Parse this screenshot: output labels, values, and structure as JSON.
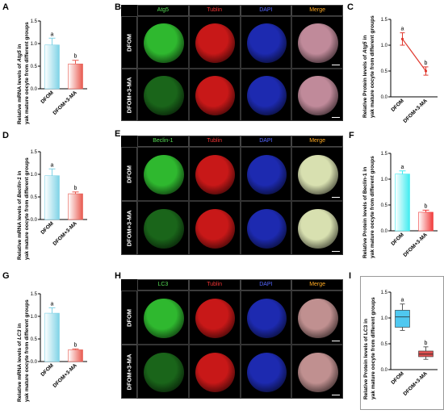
{
  "panels": {
    "A": {
      "letter": "A",
      "ylabel1": "Relative mRNA levels of ",
      "gene": "Atg5",
      "ylabel1b": " in",
      "ylabel2": "yak mature oocyte from different groups",
      "categories": [
        "DFOM",
        "DFOM+3-MA"
      ],
      "ticks": [
        "0.0",
        "0.5",
        "1.0",
        "1.5"
      ],
      "sig": [
        "a",
        "b"
      ]
    },
    "B": {
      "letter": "B",
      "headers": [
        "Atg5",
        "Tublin",
        "DAPI",
        "Merge"
      ],
      "header_colors": [
        "#55dd55",
        "#ee3333",
        "#5566ff",
        "#ffaa22"
      ],
      "rows": [
        "DFOM",
        "DFOM+3-MA"
      ],
      "scale": "20μm",
      "merge_color": "#c08a9a"
    },
    "C": {
      "letter": "C",
      "ylabel1": "Relative Protein levels of ",
      "gene": "Atg5",
      "ylabel1b": " in",
      "ylabel2": "yak mature oocyte from different groups",
      "categories": [
        "DFOM",
        "DFOM+3-MA"
      ],
      "ticks": [
        "0.0",
        "0.5",
        "1.0",
        "1.5"
      ],
      "sig": [
        "a",
        "b"
      ]
    },
    "D": {
      "letter": "D",
      "ylabel1": "Relative mRNA levels of ",
      "gene": "Beclin-1",
      "ylabel1b": " in",
      "ylabel2": "yak mature oocyte from different groups",
      "categories": [
        "DFOM",
        "DFOM+3-MA"
      ],
      "ticks": [
        "0.0",
        "0.5",
        "1.0",
        "1.5"
      ],
      "sig": [
        "a",
        "b"
      ]
    },
    "E": {
      "letter": "E",
      "headers": [
        "Beclin-1",
        "Tublin",
        "DAPI",
        "Merge"
      ],
      "header_colors": [
        "#55dd55",
        "#ee3333",
        "#5566ff",
        "#ffaa22"
      ],
      "rows": [
        "DFOM",
        "DFOM+3-MA"
      ],
      "scale": "20μm",
      "merge_color": "#d8e0b0"
    },
    "F": {
      "letter": "F",
      "ylabel1": "Relative Protein levels of Beclin-1 in",
      "gene": "",
      "ylabel1b": "",
      "ylabel2": "yak mature oocyte from different groups",
      "categories": [
        "DFOM",
        "DFOM+3-MA"
      ],
      "ticks": [
        "0.0",
        "0.5",
        "1.0",
        "1.5"
      ],
      "sig": [
        "a",
        "b"
      ]
    },
    "G": {
      "letter": "G",
      "ylabel1": "Relative mRNA levels of ",
      "gene": "LC3",
      "ylabel1b": " in",
      "ylabel2": "yak mature oocyte from different groups",
      "categories": [
        "DFOM",
        "DFOM+3-MA"
      ],
      "ticks": [
        "0.0",
        "0.5",
        "1.0",
        "1.5"
      ],
      "sig": [
        "a",
        "b"
      ]
    },
    "H": {
      "letter": "H",
      "headers": [
        "LC3",
        "Tublin",
        "DAPI",
        "Merge"
      ],
      "header_colors": [
        "#55dd55",
        "#ee3333",
        "#5566ff",
        "#ffaa22"
      ],
      "rows": [
        "DFOM",
        "DFOM+3-MA"
      ],
      "scale": "20μm",
      "merge_color": "#c09090"
    },
    "I": {
      "letter": "I",
      "ylabel1": "Relative Protein levels of LC3 in",
      "gene": "",
      "ylabel1b": "",
      "ylabel2": "yak mature oocyte from different groups",
      "categories": [
        "DFOM",
        "DFOM+3-MA"
      ],
      "ticks": [
        "0.0",
        "0.5",
        "1.0",
        "1.5"
      ],
      "sig": [
        "a",
        "b"
      ]
    }
  },
  "chart_data": [
    {
      "panel": "A",
      "type": "bar",
      "categories": [
        "DFOM",
        "DFOM+3-MA"
      ],
      "values": [
        0.97,
        0.55
      ],
      "errors": [
        0.15,
        0.08
      ],
      "ylim": [
        0,
        1.5
      ],
      "colors": [
        "#7fd3e6",
        "#e85a50"
      ]
    },
    {
      "panel": "C",
      "type": "line",
      "categories": [
        "DFOM",
        "DFOM+3-MA"
      ],
      "values": [
        1.12,
        0.5
      ],
      "errors": [
        0.12,
        0.08
      ],
      "ylim": [
        0,
        1.5
      ],
      "colors": [
        "#e03a30"
      ]
    },
    {
      "panel": "D",
      "type": "bar",
      "categories": [
        "DFOM",
        "DFOM+3-MA"
      ],
      "values": [
        0.97,
        0.57
      ],
      "errors": [
        0.15,
        0.04
      ],
      "ylim": [
        0,
        1.5
      ],
      "colors": [
        "#7fd3e6",
        "#e85a50"
      ]
    },
    {
      "panel": "F",
      "type": "bar",
      "categories": [
        "DFOM",
        "DFOM+3-MA"
      ],
      "values": [
        1.1,
        0.36
      ],
      "errors": [
        0.06,
        0.04
      ],
      "ylim": [
        0,
        1.5
      ],
      "colors": [
        "#40ecf0",
        "#f03a3a"
      ]
    },
    {
      "panel": "G",
      "type": "bar",
      "categories": [
        "DFOM",
        "DFOM+3-MA"
      ],
      "values": [
        1.07,
        0.26
      ],
      "errors": [
        0.12,
        0.02
      ],
      "ylim": [
        0,
        1.5
      ],
      "colors": [
        "#7fd3e6",
        "#e85a50"
      ]
    },
    {
      "panel": "I",
      "type": "box",
      "categories": [
        "DFOM",
        "DFOM+3-MA"
      ],
      "boxes": [
        {
          "min": 0.76,
          "q1": 0.82,
          "median": 1.02,
          "q3": 1.15,
          "max": 1.27
        },
        {
          "min": 0.2,
          "q1": 0.25,
          "median": 0.3,
          "q3": 0.36,
          "max": 0.44
        }
      ],
      "ylim": [
        0,
        1.5
      ],
      "colors": [
        "#4fc8f0",
        "#e05050"
      ]
    }
  ]
}
